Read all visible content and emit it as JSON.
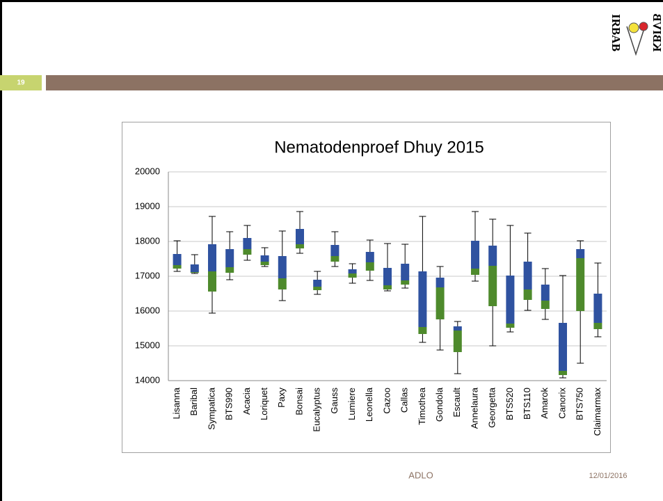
{
  "slide_number": "19",
  "logo_text": [
    "IRBAB",
    "KBIVB"
  ],
  "footer": {
    "left": "ADLO",
    "right": "12/01/2016"
  },
  "chart_data": {
    "type": "box",
    "title": "Nematodenproef Dhuy 2015",
    "categories": [
      "Lisanna",
      "Baribal",
      "Sympatica",
      "BTS990",
      "Acacia",
      "Loriquet",
      "Paxy",
      "Bonsai",
      "Eucalyptus",
      "Gauss",
      "Lumiere",
      "Leonella",
      "Cazoo",
      "Callas",
      "Timothea",
      "Gondola",
      "Escault",
      "Annelaura",
      "Georgetta",
      "BTS520",
      "BTS110",
      "Amarok",
      "Canorix",
      "BTS750",
      "Claimarmax"
    ],
    "min": [
      17140,
      17080,
      15940,
      16900,
      17460,
      17280,
      16300,
      17660,
      16480,
      17280,
      16800,
      16880,
      16580,
      16660,
      15100,
      14880,
      14200,
      16860,
      15000,
      15400,
      16020,
      15760,
      14080,
      14500,
      15260
    ],
    "q1": [
      17220,
      17100,
      16560,
      17100,
      17620,
      17320,
      16620,
      17800,
      16600,
      17420,
      16960,
      17160,
      16620,
      16760,
      15340,
      15760,
      14820,
      17040,
      16140,
      15520,
      16320,
      16060,
      14160,
      16000,
      15480
    ],
    "median": [
      17320,
      17120,
      17140,
      17260,
      17780,
      17420,
      16940,
      17920,
      16700,
      17580,
      17080,
      17400,
      16740,
      16880,
      15540,
      16680,
      15440,
      17220,
      17300,
      15640,
      16620,
      16300,
      14280,
      17520,
      15660
    ],
    "q3": [
      17640,
      17340,
      17920,
      17780,
      18100,
      17600,
      17580,
      18360,
      16900,
      17900,
      17200,
      17700,
      17240,
      17360,
      17140,
      16960,
      15560,
      18020,
      17880,
      17020,
      17420,
      16760,
      15660,
      17780,
      16500
    ],
    "max": [
      18020,
      17620,
      18720,
      18280,
      18460,
      17820,
      18300,
      18860,
      17140,
      18280,
      17360,
      18040,
      17940,
      17920,
      18720,
      17280,
      15700,
      18860,
      18640,
      18460,
      18240,
      17220,
      17020,
      18020,
      17380
    ],
    "lower_color": "#4e8a2c",
    "upper_color": "#2f52a0",
    "ylim": [
      14000,
      20000
    ],
    "yticks": [
      14000,
      15000,
      16000,
      17000,
      18000,
      19000,
      20000
    ],
    "grid": true
  }
}
